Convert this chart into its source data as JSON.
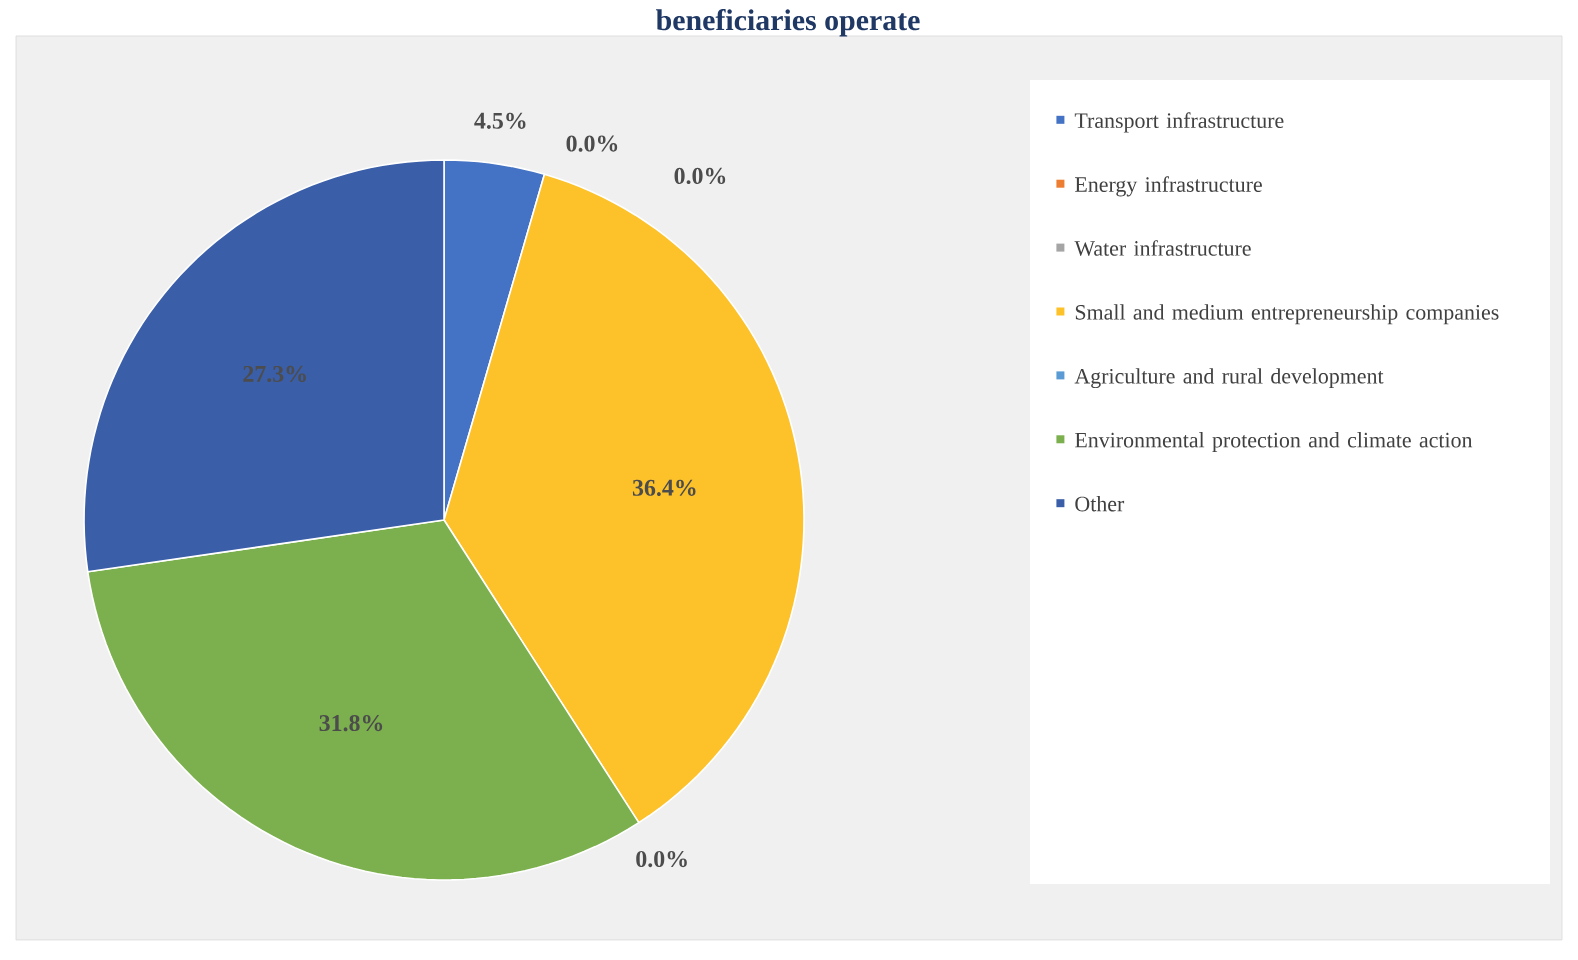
{
  "chart_data": {
    "type": "pie",
    "title": "beneficiaries operate",
    "categories": [
      "Transport infrastructure",
      "Energy infrastructure",
      "Water infrastructure",
      "Small and medium entrepreneurship companies",
      "Agriculture and rural development",
      "Environmental protection and climate action",
      "Other"
    ],
    "values": [
      4.5,
      0.0,
      0.0,
      36.4,
      0.0,
      31.8,
      27.3
    ],
    "colors": [
      "#4472c4",
      "#ed7d31",
      "#a5a5a5",
      "#fdc22a",
      "#5b9bd5",
      "#7cb04e",
      "#3a5ea8"
    ],
    "value_labels": [
      "4.5%",
      "0.0%",
      "0.0%",
      "36.4%",
      "0.0%",
      "31.8%",
      "27.3%"
    ],
    "legend": "right"
  }
}
